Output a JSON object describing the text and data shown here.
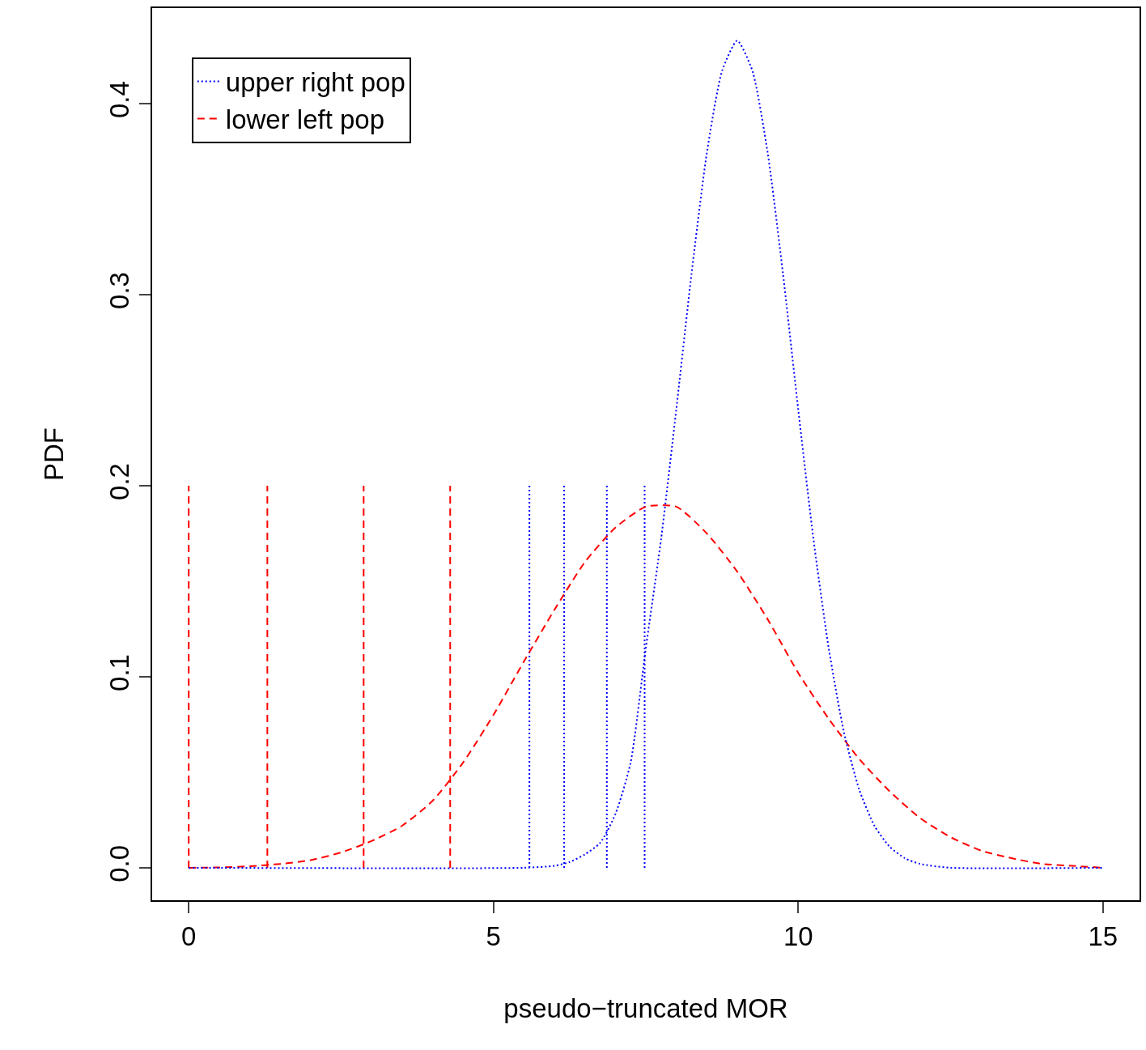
{
  "chart_data": {
    "type": "line",
    "xlabel": "pseudo−truncated MOR",
    "ylabel": "PDF",
    "xlim": [
      -0.6,
      15.6
    ],
    "ylim": [
      -0.017,
      0.45
    ],
    "xticks": [
      0,
      5,
      10,
      15
    ],
    "yticks": [
      {
        "value": 0,
        "label": "0.0"
      },
      0.1,
      0.2,
      0.3,
      0.4
    ],
    "legend": "top left",
    "marker": "none",
    "series": [
      {
        "name": "upper right pop",
        "color": "#0000ff",
        "line_style": "dotted",
        "x": [
          0,
          5.5,
          6,
          6.25,
          6.5,
          6.75,
          7,
          7.25,
          7.5,
          7.75,
          8,
          8.25,
          8.5,
          8.75,
          9,
          9.25,
          9.5,
          9.75,
          10,
          10.25,
          10.5,
          10.75,
          11,
          11.25,
          11.5,
          11.75,
          12,
          12.5,
          15
        ],
        "values": [
          0,
          0,
          0.001,
          0.003,
          0.007,
          0.013,
          0.028,
          0.055,
          0.115,
          0.172,
          0.24,
          0.311,
          0.374,
          0.417,
          0.433,
          0.417,
          0.374,
          0.311,
          0.24,
          0.172,
          0.115,
          0.071,
          0.041,
          0.022,
          0.011,
          0.005,
          0.002,
          0,
          0
        ]
      },
      {
        "name": "lower left pop",
        "color": "#ff0000",
        "line_style": "dashed",
        "x": [
          0,
          0.5,
          1,
          1.5,
          2,
          2.5,
          3,
          3.5,
          4,
          4.5,
          5,
          5.5,
          6,
          6.5,
          7,
          7.5,
          8,
          8.5,
          9,
          9.5,
          10,
          10.5,
          11,
          11.5,
          12,
          12.5,
          13,
          13.5,
          14,
          14.5,
          15
        ],
        "values": [
          0,
          0.0002,
          0.0008,
          0.002,
          0.004,
          0.008,
          0.014,
          0.022,
          0.035,
          0.055,
          0.08,
          0.108,
          0.135,
          0.16,
          0.178,
          0.189,
          0.189,
          0.175,
          0.155,
          0.13,
          0.102,
          0.078,
          0.057,
          0.04,
          0.026,
          0.016,
          0.009,
          0.005,
          0.002,
          0.001,
          0
        ]
      },
      {
        "color": "#ff0000",
        "line_style": "dashed",
        "x": [
          0,
          0
        ],
        "values": [
          0,
          0.2
        ]
      },
      {
        "color": "#ff0000",
        "line_style": "dashed",
        "x": [
          1.29,
          1.29
        ],
        "values": [
          0,
          0.2
        ]
      },
      {
        "color": "#ff0000",
        "line_style": "dashed",
        "x": [
          2.87,
          2.87
        ],
        "values": [
          0,
          0.2
        ]
      },
      {
        "color": "#ff0000",
        "line_style": "dashed",
        "x": [
          4.29,
          4.29
        ],
        "values": [
          0,
          0.2
        ]
      },
      {
        "color": "#0000ff",
        "line_style": "dotted",
        "x": [
          5.59,
          5.59
        ],
        "values": [
          0,
          0.2
        ]
      },
      {
        "color": "#0000ff",
        "line_style": "dotted",
        "x": [
          6.16,
          6.16
        ],
        "values": [
          0,
          0.2
        ]
      },
      {
        "color": "#0000ff",
        "line_style": "dotted",
        "x": [
          6.86,
          6.86
        ],
        "values": [
          0,
          0.2
        ]
      },
      {
        "color": "#0000ff",
        "line_style": "dotted",
        "x": [
          7.48,
          7.48
        ],
        "values": [
          0,
          0.2
        ]
      }
    ]
  }
}
